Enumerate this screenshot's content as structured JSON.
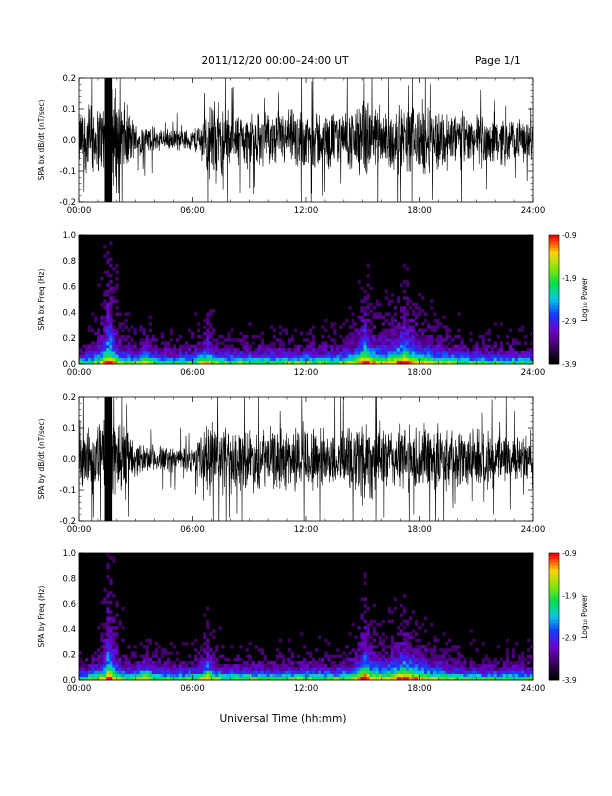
{
  "header": {
    "title": "2011/12/20  00:00–24:00 UT",
    "page": "Page 1/1"
  },
  "xlabel": "Universal Time (hh:mm)",
  "chart_data": [
    {
      "type": "line",
      "ylabel": "SPA bx dB/dt (nT/sec)",
      "xlim": [
        0,
        24
      ],
      "ylim": [
        -0.2,
        0.2
      ],
      "x_ticks": [
        "00:00",
        "06:00",
        "12:00",
        "18:00",
        "24:00"
      ],
      "y_ticks": [
        "-0.2",
        "-0.1",
        "0.0",
        "0.1",
        "0.2"
      ],
      "series": [
        {
          "x": [
            0,
            0.5,
            1,
            1.5,
            2,
            3,
            4,
            5,
            6,
            6.5,
            7,
            8,
            9,
            10,
            11,
            12,
            13,
            14,
            15,
            16,
            17,
            18,
            19,
            20,
            21,
            22,
            23,
            24
          ],
          "amplitude": [
            0.1,
            0.15,
            0.12,
            0.22,
            0.2,
            0.06,
            0.05,
            0.04,
            0.04,
            0.08,
            0.16,
            0.11,
            0.1,
            0.1,
            0.11,
            0.12,
            0.11,
            0.1,
            0.15,
            0.13,
            0.12,
            0.14,
            0.12,
            0.11,
            0.1,
            0.1,
            0.08,
            0.07
          ]
        }
      ]
    },
    {
      "type": "heatmap",
      "ylabel": "SPA bx Freq (Hz)",
      "xlim": [
        0,
        24
      ],
      "ylim": [
        0,
        1.0
      ],
      "x_ticks": [
        "00:00",
        "06:00",
        "12:00",
        "18:00",
        "24:00"
      ],
      "y_ticks": [
        "0.0",
        "0.2",
        "0.4",
        "0.6",
        "0.8",
        "1.0"
      ],
      "colorbar": {
        "label": "Log₁₀ Power",
        "range": [
          -3.9,
          -0.9
        ],
        "ticks": [
          "-0.9",
          "-1.9",
          "-2.9",
          "-3.9"
        ]
      },
      "events": [
        {
          "t": 1.6,
          "fmax": 0.6,
          "level": 1.0
        },
        {
          "t": 3.5,
          "fmax": 0.2,
          "level": 0.5
        },
        {
          "t": 6.8,
          "fmax": 0.3,
          "level": 0.6
        },
        {
          "t": 15.1,
          "fmax": 0.45,
          "level": 0.7
        },
        {
          "t": 17.2,
          "fmax": 0.4,
          "level": 0.75
        }
      ]
    },
    {
      "type": "line",
      "ylabel": "SPA by dB/dt (nT/sec)",
      "xlim": [
        0,
        24
      ],
      "ylim": [
        -0.2,
        0.2
      ],
      "x_ticks": [
        "00:00",
        "06:00",
        "12:00",
        "18:00",
        "24:00"
      ],
      "y_ticks": [
        "-0.2",
        "-0.1",
        "0.0",
        "0.1",
        "0.2"
      ],
      "series": [
        {
          "x": [
            0,
            0.5,
            1,
            1.5,
            2,
            3,
            4,
            5,
            6,
            6.5,
            7,
            8,
            9,
            10,
            11,
            12,
            13,
            14,
            15,
            16,
            17,
            18,
            19,
            20,
            21,
            22,
            23,
            24
          ],
          "amplitude": [
            0.08,
            0.14,
            0.12,
            0.22,
            0.2,
            0.06,
            0.05,
            0.05,
            0.05,
            0.1,
            0.16,
            0.12,
            0.12,
            0.11,
            0.12,
            0.13,
            0.12,
            0.11,
            0.18,
            0.12,
            0.12,
            0.14,
            0.12,
            0.11,
            0.11,
            0.1,
            0.09,
            0.07
          ]
        }
      ]
    },
    {
      "type": "heatmap",
      "ylabel": "SPA by Freq (Hz)",
      "xlim": [
        0,
        24
      ],
      "ylim": [
        0,
        1.0
      ],
      "x_ticks": [
        "00:00",
        "06:00",
        "12:00",
        "18:00",
        "24:00"
      ],
      "y_ticks": [
        "0.0",
        "0.2",
        "0.4",
        "0.6",
        "0.8",
        "1.0"
      ],
      "colorbar": {
        "label": "Log₁₀ Power",
        "range": [
          -3.9,
          -0.9
        ],
        "ticks": [
          "-0.9",
          "-1.9",
          "-2.9",
          "-3.9"
        ]
      },
      "events": [
        {
          "t": 1.6,
          "fmax": 0.6,
          "level": 1.0
        },
        {
          "t": 3.5,
          "fmax": 0.2,
          "level": 0.5
        },
        {
          "t": 6.8,
          "fmax": 0.3,
          "level": 0.6
        },
        {
          "t": 15.1,
          "fmax": 0.45,
          "level": 0.7
        },
        {
          "t": 17.2,
          "fmax": 0.35,
          "level": 0.75
        }
      ]
    }
  ]
}
